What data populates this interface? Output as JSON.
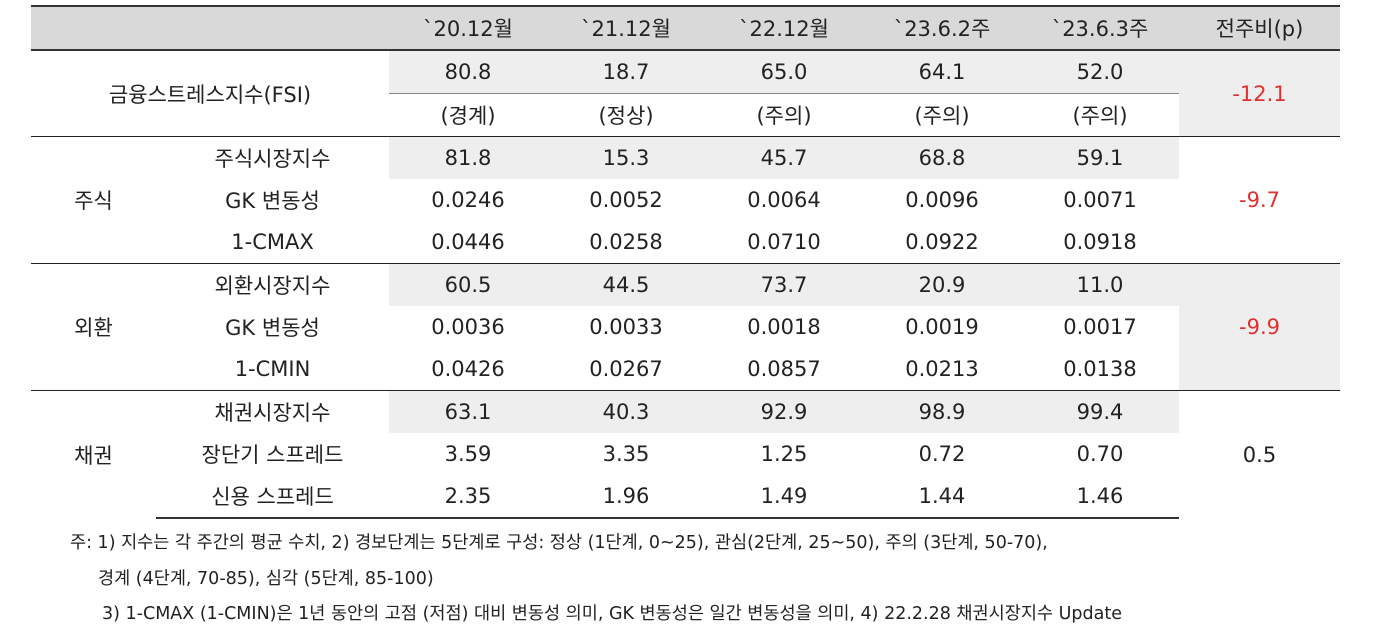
{
  "headers": [
    "",
    "",
    "`20.12월",
    "`21.12월",
    "`22.12월",
    "`23.6.2주",
    "`23.6.3주",
    "전주비(p)"
  ],
  "fsi": {
    "label": "금융스트레스지수(FSI)",
    "values": [
      "80.8",
      "18.7",
      "65.0",
      "64.1",
      "52.0"
    ],
    "levels": [
      "(경계)",
      "(정상)",
      "(주의)",
      "(주의)",
      "(주의)"
    ],
    "change": "-12.1"
  },
  "groups": [
    {
      "name": "주식",
      "change": "-9.7",
      "rows": [
        {
          "label": "주식시장지수",
          "values": [
            "81.8",
            "15.3",
            "45.7",
            "68.8",
            "59.1"
          ]
        },
        {
          "label": "GK 변동성",
          "values": [
            "0.0246",
            "0.0052",
            "0.0064",
            "0.0096",
            "0.0071"
          ]
        },
        {
          "label": "1-CMAX",
          "values": [
            "0.0446",
            "0.0258",
            "0.0710",
            "0.0922",
            "0.0918"
          ]
        }
      ]
    },
    {
      "name": "외환",
      "change": "-9.9",
      "rows": [
        {
          "label": "외환시장지수",
          "values": [
            "60.5",
            "44.5",
            "73.7",
            "20.9",
            "11.0"
          ]
        },
        {
          "label": "GK 변동성",
          "values": [
            "0.0036",
            "0.0033",
            "0.0018",
            "0.0019",
            "0.0017"
          ]
        },
        {
          "label": "1-CMIN",
          "values": [
            "0.0426",
            "0.0267",
            "0.0857",
            "0.0213",
            "0.0138"
          ]
        }
      ]
    },
    {
      "name": "채권",
      "change": "0.5",
      "rows": [
        {
          "label": "채권시장지수",
          "values": [
            "63.1",
            "40.3",
            "92.9",
            "98.9",
            "99.4"
          ]
        },
        {
          "label": "장단기 스프레드",
          "values": [
            "3.59",
            "3.35",
            "1.25",
            "0.72",
            "0.70"
          ]
        },
        {
          "label": "신용 스프레드",
          "values": [
            "2.35",
            "1.96",
            "1.49",
            "1.44",
            "1.46"
          ]
        }
      ]
    }
  ],
  "notes": [
    "주: 1) 지수는 각 주간의 평균 수치, 2) 경보단계는 5단계로 구성: 정상 (1단계, 0~25), 관심(2단계, 25~50), 주의 (3단계, 50-70),",
    "경계 (4단계, 70-85), 심각 (5단계, 85-100)",
    "3) 1-CMAX (1-CMIN)은 1년 동안의 고점 (저점) 대비 변동성 의미, GK 변동성은 일간 변동성을 의미, 4) 22.2.28 채권시장지수 Update"
  ],
  "colors": {
    "header_bg": "#d9d9d9",
    "shade_bg": "#eeeeee",
    "change_red": "#e03030"
  }
}
